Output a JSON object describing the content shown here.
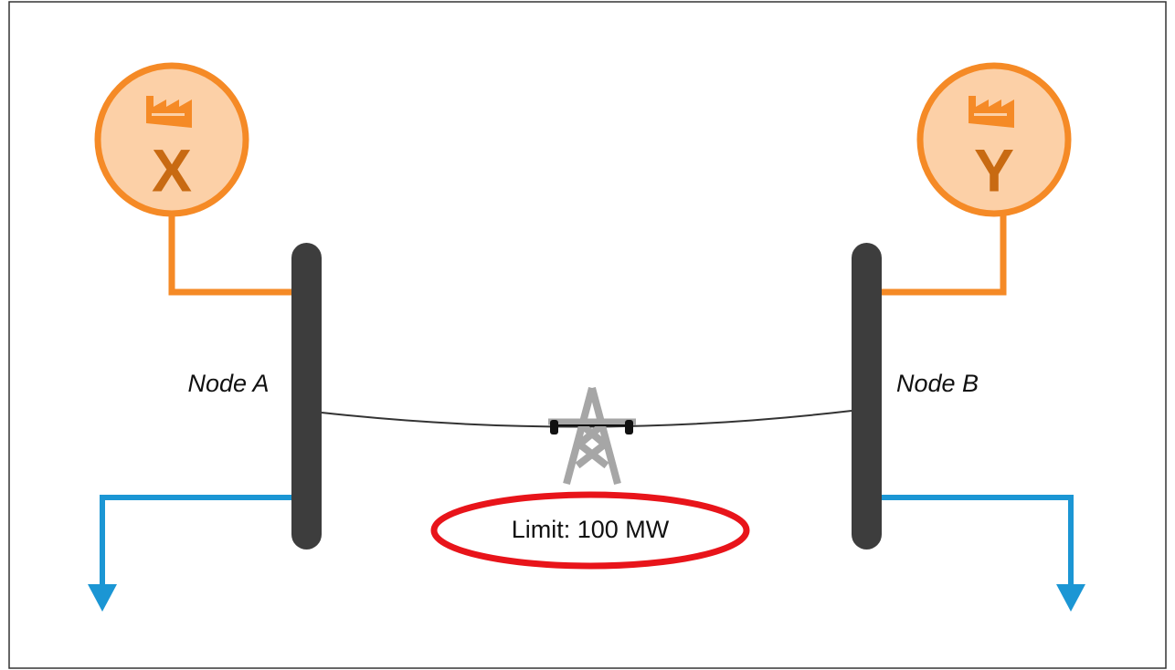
{
  "generators": [
    {
      "label": "X"
    },
    {
      "label": "Y"
    }
  ],
  "nodes": [
    {
      "label": "Node A"
    },
    {
      "label": "Node B"
    }
  ],
  "line": {
    "limit": "Limit: 100 MW"
  }
}
